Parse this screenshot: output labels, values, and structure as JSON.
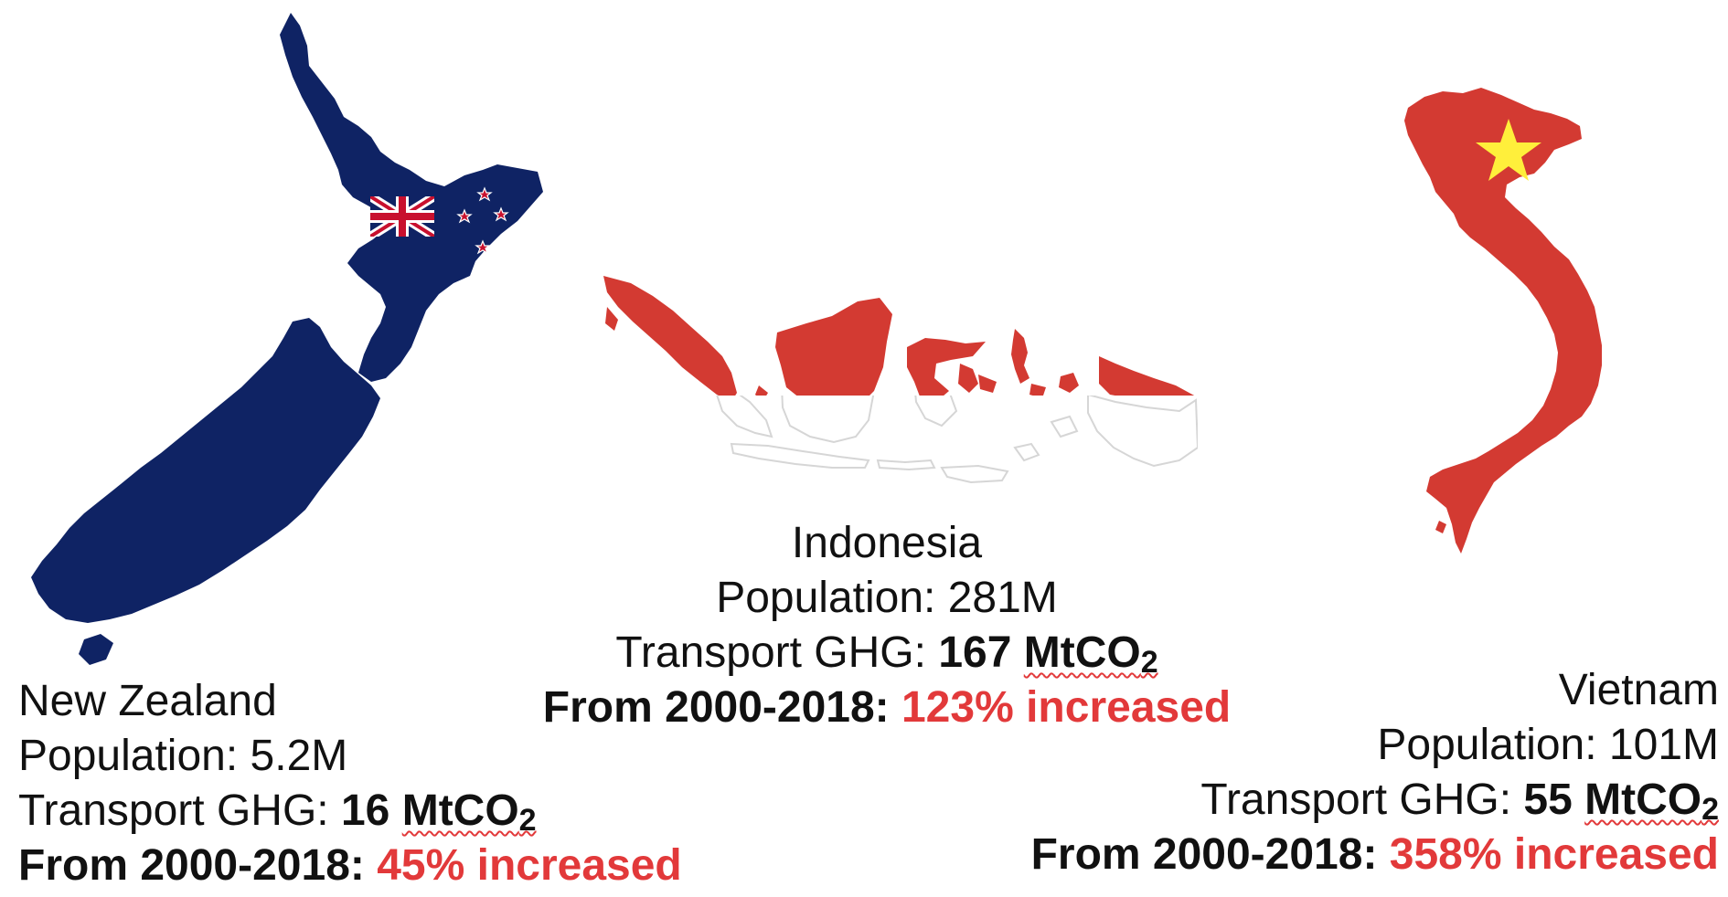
{
  "countries": [
    {
      "name": "New Zealand",
      "population_label": "Population: ",
      "population_value": "5.2M",
      "ghg_label": "Transport GHG: ",
      "ghg_value": "16",
      "ghg_unit": "MtCO",
      "ghg_unit_sub": "2",
      "trend_label": "From 2000-2018: ",
      "trend_value": "45% increased",
      "flag_colors": {
        "field": "#0f2364",
        "cross": "#c8102e",
        "saltire": "#ffffff",
        "stars": "#c8102e"
      }
    },
    {
      "name": "Indonesia",
      "population_label": "Population: ",
      "population_value": "281M",
      "ghg_label": "Transport GHG: ",
      "ghg_value": "167",
      "ghg_unit": "MtCO",
      "ghg_unit_sub": "2",
      "trend_label": "From 2000-2018: ",
      "trend_value": "123% increased",
      "flag_colors": {
        "top": "#d33a32",
        "bottom": "#ffffff"
      }
    },
    {
      "name": "Vietnam",
      "population_label": "Population: ",
      "population_value": "101M",
      "ghg_label": "Transport GHG: ",
      "ghg_value": "55",
      "ghg_unit": "MtCO",
      "ghg_unit_sub": "2",
      "trend_label": "From 2000-2018: ",
      "trend_value": "358% increased",
      "flag_colors": {
        "field": "#d33a32",
        "star": "#ffef3b"
      }
    }
  ]
}
